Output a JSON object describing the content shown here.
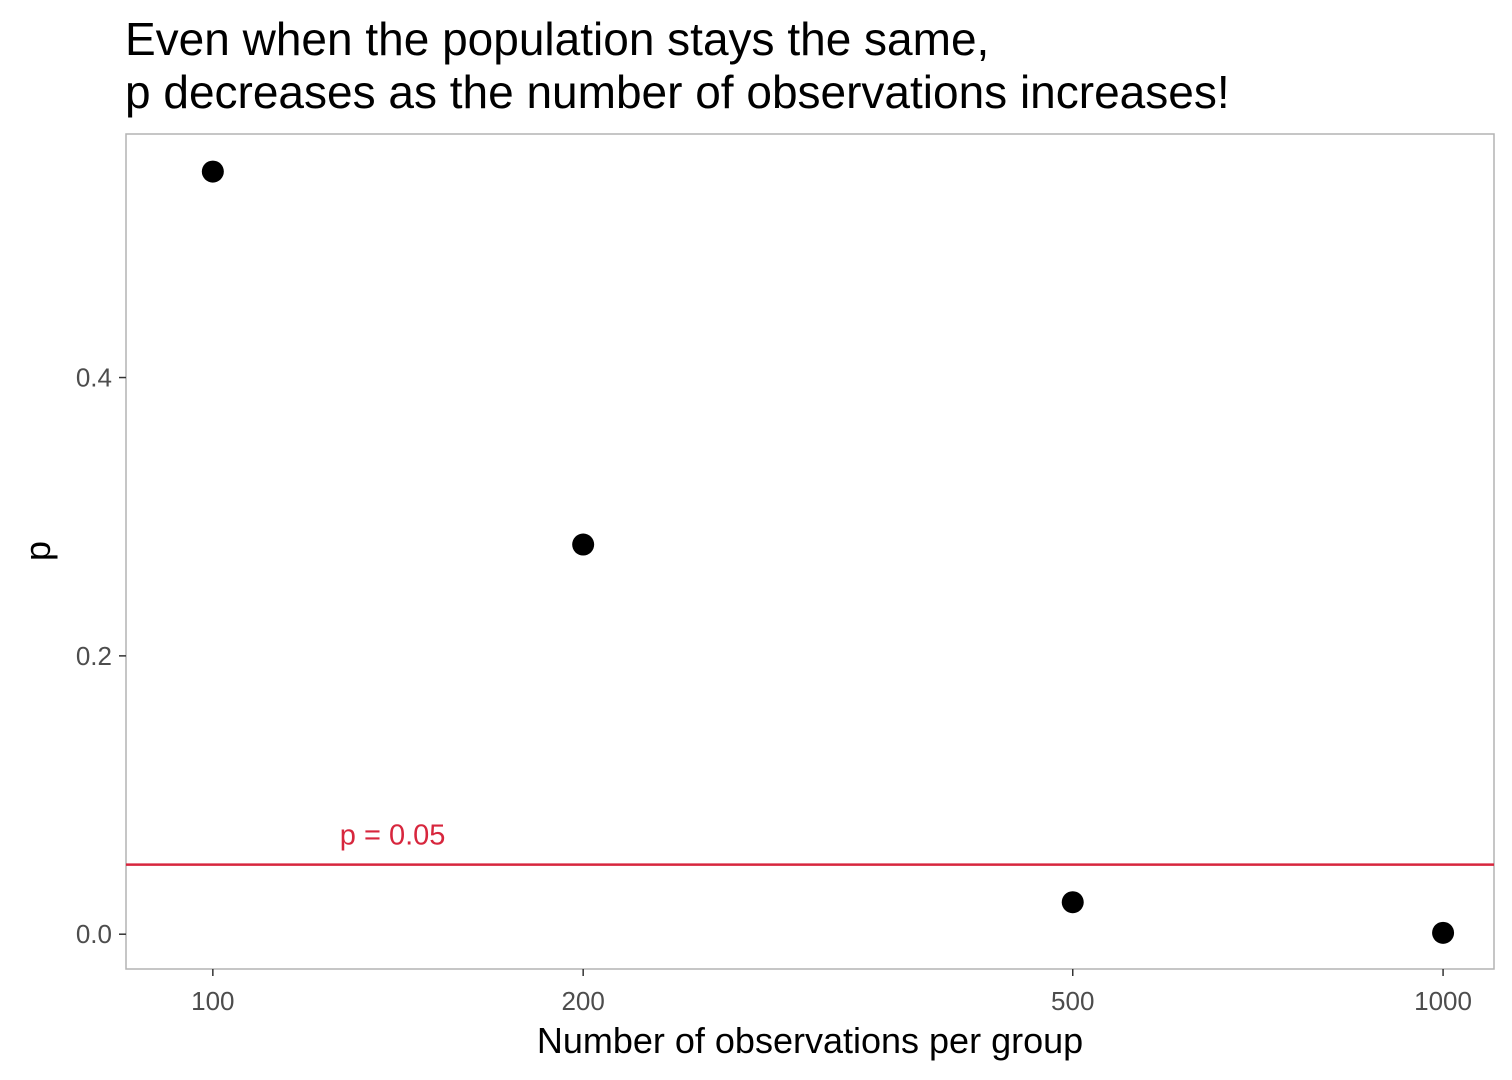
{
  "chart_data": {
    "type": "scatter",
    "title_lines": [
      "Even when the population stays the same,",
      "p decreases as the number of observations increases!"
    ],
    "xlabel": "Number of observations per group",
    "ylabel": "p",
    "x_scale": "log10",
    "xlim": [
      85,
      1100
    ],
    "ylim": [
      -0.025,
      0.575
    ],
    "x_ticks": [
      100,
      200,
      500,
      1000
    ],
    "x_tick_labels": [
      "100",
      "200",
      "500",
      "1000"
    ],
    "y_ticks": [
      0.0,
      0.2,
      0.4
    ],
    "y_tick_labels": [
      "0.0",
      "0.2",
      "0.4"
    ],
    "grid": false,
    "points": [
      {
        "x": 100,
        "y": 0.548
      },
      {
        "x": 200,
        "y": 0.28
      },
      {
        "x": 500,
        "y": 0.023
      },
      {
        "x": 1000,
        "y": 0.001
      }
    ],
    "reference_line": {
      "y": 0.05,
      "label": "p = 0.05",
      "label_x": 140,
      "color": "#d7263d"
    },
    "point_color": "#000000"
  }
}
